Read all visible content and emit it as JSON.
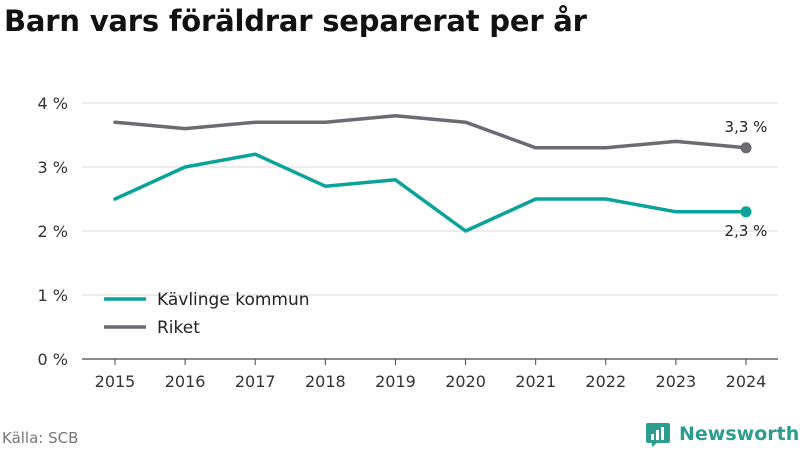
{
  "title": "Barn vars föräldrar separerat per år",
  "source": "Källa: SCB",
  "brand": {
    "name": "Newsworthy",
    "icon": "newsworthy-logo-icon",
    "color": "#2a9d8f"
  },
  "chart_data": {
    "type": "line",
    "categories": [
      "2015",
      "2016",
      "2017",
      "2018",
      "2019",
      "2020",
      "2021",
      "2022",
      "2023",
      "2024"
    ],
    "series": [
      {
        "name": "Kävlinge kommun",
        "color": "#0aa39a",
        "values": [
          2.5,
          3.0,
          3.2,
          2.7,
          2.8,
          2.0,
          2.5,
          2.5,
          2.3,
          2.3
        ],
        "end_label": "2,3 %"
      },
      {
        "name": "Riket",
        "color": "#6b6b72",
        "values": [
          3.7,
          3.6,
          3.7,
          3.7,
          3.8,
          3.7,
          3.3,
          3.3,
          3.4,
          3.3
        ],
        "end_label": "3,3 %"
      }
    ],
    "yticks": [
      {
        "value": 0,
        "label": "0 %"
      },
      {
        "value": 1,
        "label": "1 %"
      },
      {
        "value": 2,
        "label": "2 %"
      },
      {
        "value": 3,
        "label": "3 %"
      },
      {
        "value": 4,
        "label": "4 %"
      }
    ],
    "ylim": [
      0,
      4
    ],
    "grid": true,
    "legend": "bottom-left"
  }
}
